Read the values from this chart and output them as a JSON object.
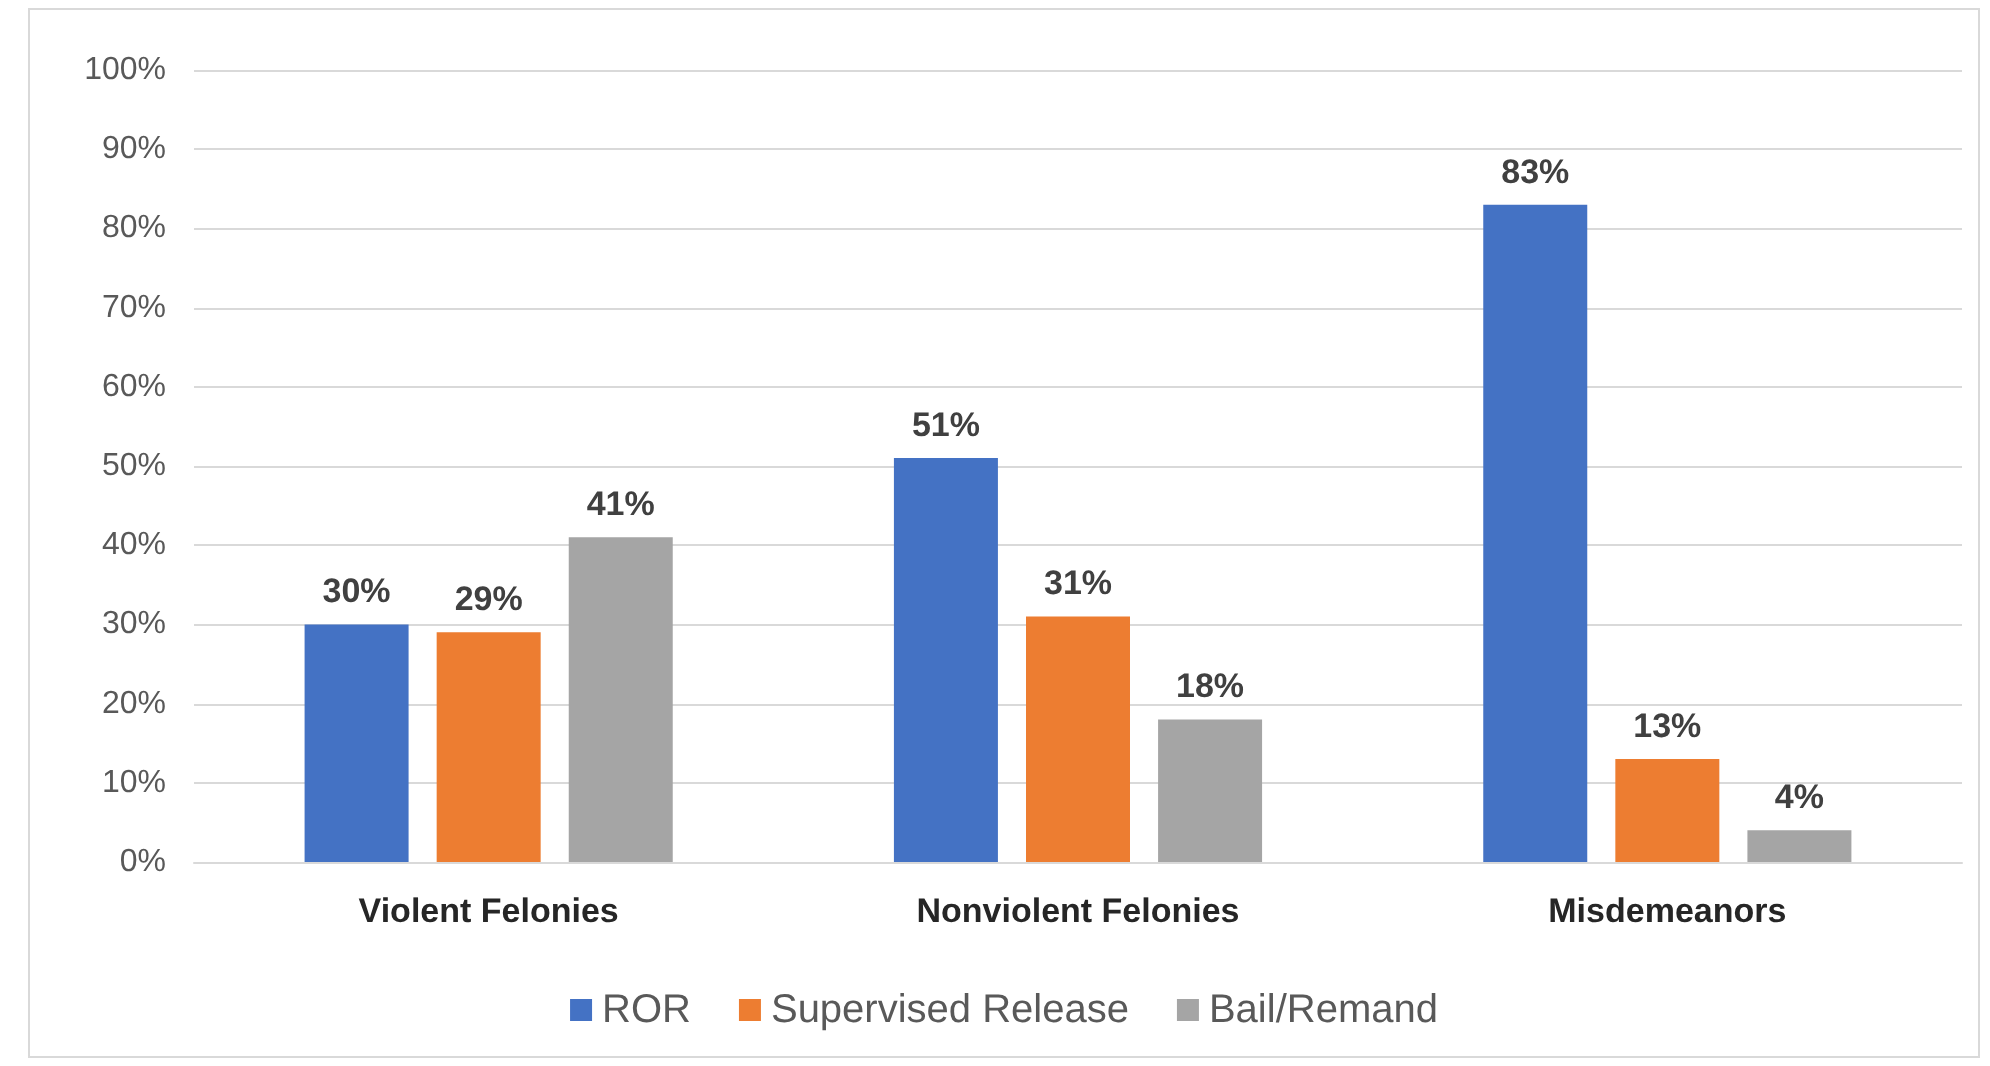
{
  "chart_data": {
    "type": "bar",
    "categories": [
      "Violent Felonies",
      "Nonviolent Felonies",
      "Misdemeanors"
    ],
    "series": [
      {
        "name": "ROR",
        "color": "#4472c4",
        "values": [
          30,
          51,
          83
        ],
        "value_labels": [
          "30%",
          "51%",
          "83%"
        ]
      },
      {
        "name": "Supervised Release",
        "color": "#ed7d31",
        "values": [
          29,
          31,
          13
        ],
        "value_labels": [
          "29%",
          "31%",
          "13%"
        ]
      },
      {
        "name": "Bail/Remand",
        "color": "#a5a5a5",
        "values": [
          41,
          18,
          4
        ],
        "value_labels": [
          "41%",
          "18%",
          "4%"
        ]
      }
    ],
    "ylim": [
      0,
      100
    ],
    "yticks": [
      {
        "value": 0,
        "label": "0%"
      },
      {
        "value": 10,
        "label": "10%"
      },
      {
        "value": 20,
        "label": "20%"
      },
      {
        "value": 30,
        "label": "30%"
      },
      {
        "value": 40,
        "label": "40%"
      },
      {
        "value": 50,
        "label": "50%"
      },
      {
        "value": 60,
        "label": "60%"
      },
      {
        "value": 70,
        "label": "70%"
      },
      {
        "value": 80,
        "label": "80%"
      },
      {
        "value": 90,
        "label": "90%"
      },
      {
        "value": 100,
        "label": "100%"
      }
    ],
    "grid": "y",
    "legend": "bottom"
  }
}
